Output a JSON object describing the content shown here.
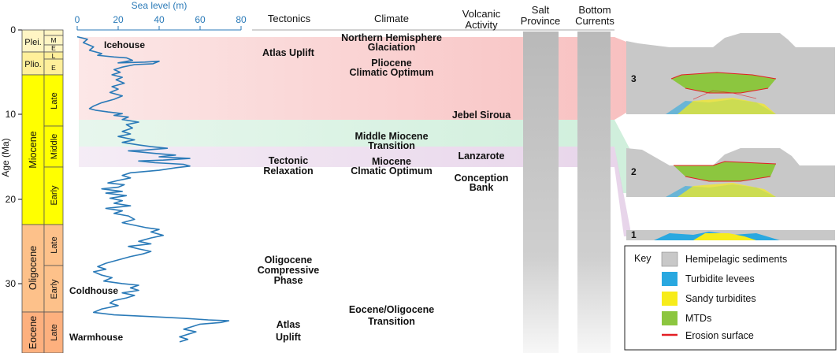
{
  "axes": {
    "sea_level_label": "Sea level (m)",
    "sea_level_ticks": [
      "0",
      "20",
      "40",
      "60",
      "80"
    ],
    "age_label": "Age (Ma)",
    "age_ticks": [
      "0",
      "10",
      "20",
      "30"
    ]
  },
  "column_headers": {
    "tectonics": "Tectonics",
    "climate": "Climate",
    "volcanic": [
      "Volcanic",
      "Activity"
    ],
    "salt": [
      "Salt",
      "Province"
    ],
    "bottom": [
      "Bottom",
      "Currents"
    ]
  },
  "epochs": {
    "plei": "Plei.",
    "plio": "Plio.",
    "miocene": "Miocene",
    "oligocene": "Oligocene",
    "eocene": "Eocene"
  },
  "sub_epochs": {
    "plei_m": "M",
    "plei_e": "E",
    "plio_l": "L",
    "plio_e": "E",
    "mio_late": "Late",
    "mio_middle": "Middle",
    "mio_early": "Early",
    "oli_late": "Late",
    "oli_early": "Early",
    "eoc_late": "Late"
  },
  "curve_labels": {
    "icehouse": "Icehouse",
    "coldhouse": "Coldhouse",
    "warmhouse": "Warmhouse"
  },
  "tectonics": {
    "atlas_uplift_top": "Atlas Uplift",
    "relaxation": [
      "Tectonic",
      "Relaxation"
    ],
    "oligocene_phase": [
      "Oligocene",
      "Compressive",
      "Phase"
    ],
    "atlas_uplift_bottom": [
      "Atlas",
      "Uplift"
    ]
  },
  "climate": {
    "nh_glaciation": [
      "Northern Hemisphere",
      "Glaciation"
    ],
    "pliocene_optimum": [
      "Pliocene",
      "Climatic Optimum"
    ],
    "mmt": [
      "Middle Miocene",
      "Transition"
    ],
    "mco": [
      "Miocene",
      "Clmatic Optimum"
    ],
    "eot": [
      "Eocene/Oligocene",
      "Transition"
    ]
  },
  "volcanic": {
    "jebel_siroua": "Jebel Siroua",
    "lanzarote": "Lanzarote",
    "conception_bank": [
      "Conception",
      "Bank"
    ]
  },
  "sections": {
    "s3": "3",
    "s2": "2",
    "s1": "1"
  },
  "key": {
    "title": "Key",
    "items": [
      {
        "label": "Hemipelagic sediments",
        "color": "#c8c8c8"
      },
      {
        "label": "Turbidite levees",
        "color": "#29a8e0"
      },
      {
        "label": "Sandy turbidites",
        "color": "#f7ec1a"
      },
      {
        "label": "MTDs",
        "color": "#8cc63f"
      },
      {
        "label": "Erosion surface",
        "color": "#e31e24"
      }
    ]
  },
  "colors": {
    "pleistocene": "#fff5c4",
    "pliocene": "#ffef9a",
    "miocene": "#ffff00",
    "oligocene": "#fdc18a",
    "eocene": "#fdb07e",
    "sea_level": "#2a7ab8",
    "band_pink": "#f7c6c6",
    "band_green": "#cdeedd",
    "band_purple": "#e8d6ea"
  },
  "chart_data": {
    "type": "line",
    "name": "Sea level (m)",
    "x_axis": "Sea level (m)",
    "y_axis": "Age (Ma)",
    "xlim": [
      0,
      80
    ],
    "ylim": [
      0,
      37
    ],
    "points": [
      [
        0,
        0.8
      ],
      [
        5,
        1.1
      ],
      [
        3,
        1.5
      ],
      [
        8,
        2.0
      ],
      [
        6,
        2.4
      ],
      [
        12,
        2.8
      ],
      [
        10,
        3.0
      ],
      [
        18,
        3.2
      ],
      [
        24,
        3.3
      ],
      [
        27,
        3.6
      ],
      [
        20,
        3.9
      ],
      [
        33,
        3.8
      ],
      [
        40,
        3.7
      ],
      [
        37,
        4.0
      ],
      [
        28,
        4.1
      ],
      [
        22,
        4.4
      ],
      [
        18,
        4.7
      ],
      [
        21,
        5.0
      ],
      [
        17,
        5.3
      ],
      [
        22,
        5.6
      ],
      [
        19,
        5.9
      ],
      [
        23,
        6.3
      ],
      [
        17,
        6.7
      ],
      [
        20,
        7.0
      ],
      [
        16,
        7.4
      ],
      [
        22,
        7.8
      ],
      [
        18,
        8.2
      ],
      [
        12,
        8.6
      ],
      [
        8,
        9.0
      ],
      [
        6,
        9.3
      ],
      [
        9,
        9.5
      ],
      [
        15,
        9.7
      ],
      [
        22,
        9.9
      ],
      [
        18,
        10.1
      ],
      [
        25,
        10.3
      ],
      [
        22,
        10.6
      ],
      [
        30,
        10.9
      ],
      [
        24,
        11.2
      ],
      [
        27,
        11.6
      ],
      [
        22,
        12.0
      ],
      [
        26,
        12.3
      ],
      [
        20,
        12.6
      ],
      [
        28,
        13.0
      ],
      [
        22,
        13.3
      ],
      [
        30,
        13.6
      ],
      [
        36,
        13.8
      ],
      [
        44,
        14.0
      ],
      [
        33,
        14.2
      ],
      [
        25,
        14.3
      ],
      [
        38,
        14.6
      ],
      [
        48,
        14.8
      ],
      [
        40,
        15.0
      ],
      [
        55,
        15.2
      ],
      [
        42,
        15.4
      ],
      [
        30,
        15.5
      ],
      [
        38,
        15.7
      ],
      [
        45,
        15.8
      ],
      [
        52,
        15.9
      ],
      [
        55,
        16.1
      ],
      [
        48,
        16.3
      ],
      [
        40,
        16.6
      ],
      [
        26,
        16.9
      ],
      [
        22,
        17.2
      ],
      [
        26,
        17.5
      ],
      [
        20,
        17.8
      ],
      [
        15,
        18.1
      ],
      [
        23,
        18.3
      ],
      [
        20,
        18.6
      ],
      [
        12,
        18.8
      ],
      [
        22,
        19.1
      ],
      [
        14,
        19.3
      ],
      [
        24,
        19.6
      ],
      [
        16,
        19.9
      ],
      [
        22,
        20.2
      ],
      [
        18,
        20.5
      ],
      [
        26,
        20.8
      ],
      [
        14,
        21.1
      ],
      [
        22,
        21.4
      ],
      [
        18,
        21.7
      ],
      [
        25,
        22.0
      ],
      [
        28,
        22.4
      ],
      [
        22,
        22.8
      ],
      [
        28,
        23.1
      ],
      [
        34,
        23.4
      ],
      [
        40,
        23.6
      ],
      [
        36,
        23.9
      ],
      [
        42,
        24.3
      ],
      [
        36,
        24.6
      ],
      [
        30,
        25.0
      ],
      [
        36,
        25.3
      ],
      [
        25,
        25.6
      ],
      [
        30,
        25.9
      ],
      [
        36,
        26.2
      ],
      [
        32,
        26.5
      ],
      [
        26,
        26.8
      ],
      [
        20,
        27.2
      ],
      [
        14,
        27.6
      ],
      [
        10,
        28.0
      ],
      [
        14,
        28.3
      ],
      [
        8,
        28.6
      ],
      [
        12,
        29.0
      ],
      [
        17,
        29.3
      ],
      [
        13,
        29.7
      ],
      [
        22,
        30.0
      ],
      [
        30,
        30.2
      ],
      [
        26,
        30.5
      ],
      [
        30,
        30.8
      ],
      [
        22,
        31.1
      ],
      [
        28,
        31.4
      ],
      [
        24,
        31.7
      ],
      [
        18,
        32.0
      ],
      [
        16,
        32.3
      ],
      [
        20,
        32.6
      ],
      [
        12,
        33.0
      ],
      [
        8,
        33.4
      ],
      [
        18,
        33.7
      ],
      [
        35,
        33.9
      ],
      [
        52,
        34.1
      ],
      [
        64,
        34.3
      ],
      [
        74,
        34.4
      ],
      [
        70,
        34.6
      ],
      [
        60,
        34.8
      ],
      [
        56,
        35.1
      ],
      [
        52,
        35.4
      ],
      [
        58,
        35.7
      ],
      [
        54,
        36.0
      ],
      [
        50,
        36.3
      ],
      [
        54,
        36.6
      ],
      [
        50,
        36.9
      ]
    ]
  }
}
